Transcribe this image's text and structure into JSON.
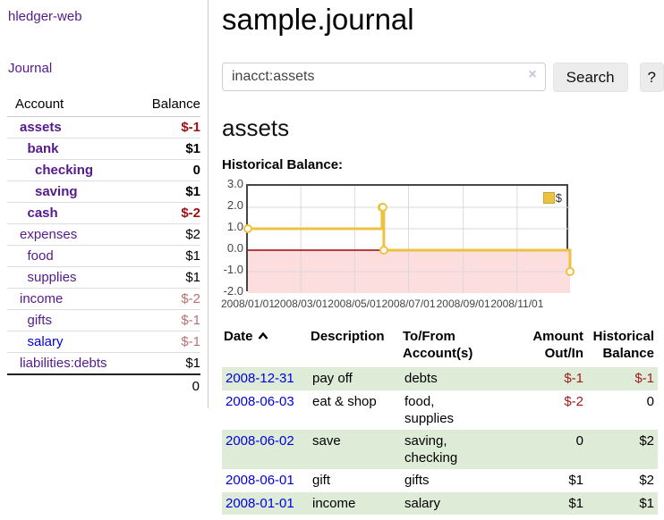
{
  "sidebar": {
    "app_title": "hledger-web",
    "nav": {
      "journal_label": "Journal"
    },
    "accounts_table": {
      "col_account": "Account",
      "col_balance": "Balance",
      "rows": [
        {
          "name": "assets",
          "balance": "$-1",
          "depth": 1,
          "bold": true,
          "negative": true,
          "link_color": "purple"
        },
        {
          "name": "bank",
          "balance": "$1",
          "depth": 2,
          "bold": true,
          "negative": false,
          "link_color": "purple"
        },
        {
          "name": "checking",
          "balance": "0",
          "depth": 3,
          "bold": true,
          "negative": false,
          "link_color": "purple"
        },
        {
          "name": "saving",
          "balance": "$1",
          "depth": 3,
          "bold": true,
          "negative": false,
          "link_color": "purple"
        },
        {
          "name": "cash",
          "balance": "$-2",
          "depth": 2,
          "bold": true,
          "negative": true,
          "link_color": "purple"
        },
        {
          "name": "expenses",
          "balance": "$2",
          "depth": 1,
          "bold": false,
          "negative": false,
          "link_color": "purple"
        },
        {
          "name": "food",
          "balance": "$1",
          "depth": 2,
          "bold": false,
          "negative": false,
          "link_color": "purple"
        },
        {
          "name": "supplies",
          "balance": "$1",
          "depth": 2,
          "bold": false,
          "negative": false,
          "link_color": "purple"
        },
        {
          "name": "income",
          "balance": "$-2",
          "depth": 1,
          "bold": false,
          "negative": true,
          "link_color": "purple"
        },
        {
          "name": "gifts",
          "balance": "$-1",
          "depth": 2,
          "bold": false,
          "negative": true,
          "link_color": "purple"
        },
        {
          "name": "salary",
          "balance": "$-1",
          "depth": 2,
          "bold": false,
          "negative": true,
          "link_color": "blue"
        },
        {
          "name": "liabilities:debts",
          "balance": "$1",
          "depth": 1,
          "bold": false,
          "negative": false,
          "link_color": "purple"
        }
      ],
      "total": "0"
    }
  },
  "header": {
    "title": "sample.journal"
  },
  "search": {
    "query": "inacct:assets",
    "clear_icon": "×",
    "button_label": "Search",
    "help_label": "?"
  },
  "account_page": {
    "heading": "assets",
    "chart_label": "Historical Balance:"
  },
  "chart_data": {
    "type": "line",
    "step": true,
    "title": "Historical Balance",
    "series": [
      {
        "name": "$",
        "color": "#edc240",
        "points": [
          {
            "date": "2008-01-01",
            "value": 1
          },
          {
            "date": "2008-06-01",
            "value": 2
          },
          {
            "date": "2008-06-02",
            "value": 2
          },
          {
            "date": "2008-06-03",
            "value": 0
          },
          {
            "date": "2008-12-31",
            "value": -1
          }
        ]
      }
    ],
    "x_ticks": [
      "2008/01/01",
      "2008/03/01",
      "2008/05/01",
      "2008/07/01",
      "2008/09/01",
      "2008/11/01"
    ],
    "y_ticks": [
      3.0,
      2.0,
      1.0,
      0.0,
      -1.0,
      -2.0
    ],
    "ylim": [
      -2,
      3
    ],
    "xlim": [
      "2008-01-01",
      "2008-12-31"
    ],
    "grid": true,
    "legend": {
      "label": "$",
      "position": "top-right"
    },
    "negative_region_color": "#fcdede",
    "zero_line_color": "#a40000"
  },
  "register_table": {
    "columns": [
      "Date",
      "Description",
      "To/From Account(s)",
      "Amount Out/In",
      "Historical Balance"
    ],
    "sort_icon": "chevron-up",
    "rows": [
      {
        "date": "2008-12-31",
        "description": "pay off",
        "accounts": "debts",
        "amount": "$-1",
        "amount_negative": true,
        "balance": "$-1",
        "balance_negative": true,
        "stripe": true
      },
      {
        "date": "2008-06-03",
        "description": "eat & shop",
        "accounts": "food, supplies",
        "amount": "$-2",
        "amount_negative": true,
        "balance": "0",
        "balance_negative": false,
        "stripe": false
      },
      {
        "date": "2008-06-02",
        "description": "save",
        "accounts": "saving, checking",
        "amount": "0",
        "amount_negative": false,
        "balance": "$2",
        "balance_negative": false,
        "stripe": true
      },
      {
        "date": "2008-06-01",
        "description": "gift",
        "accounts": "gifts",
        "amount": "$1",
        "amount_negative": false,
        "balance": "$2",
        "balance_negative": false,
        "stripe": false
      },
      {
        "date": "2008-01-01",
        "description": "income",
        "accounts": "salary",
        "amount": "$1",
        "amount_negative": false,
        "balance": "$1",
        "balance_negative": false,
        "stripe": true
      }
    ]
  },
  "colors": {
    "link_purple": "#551a8b",
    "link_blue": "#0000dd",
    "negative_strong": "#a01010",
    "negative_soft": "#b97070",
    "table_negative": "#9e1a1a",
    "row_stripe_green": "#deecd7",
    "chart_line_gold": "#edc240",
    "chart_negative_bg": "#fcdede",
    "chart_zero_line": "#a40000",
    "plot_border": "#454545"
  }
}
